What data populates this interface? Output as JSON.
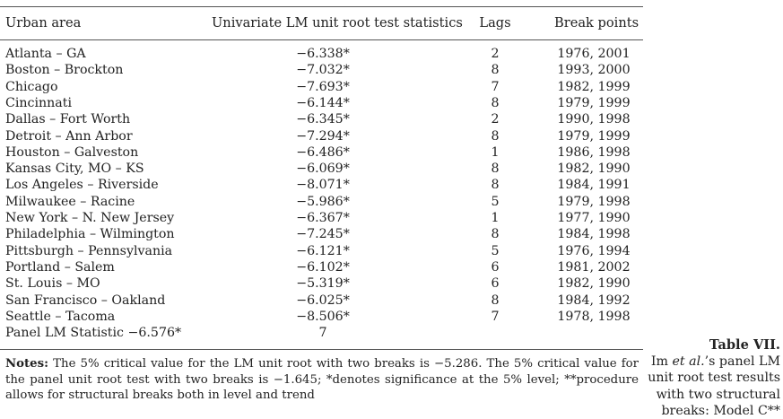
{
  "table": {
    "headers": {
      "urban_area": "Urban area",
      "statistic": "Univariate LM unit root test statistics",
      "lags": "Lags",
      "break_points": "Break points"
    },
    "rows": [
      {
        "area": "Atlanta – GA",
        "stat": "−6.338*",
        "lags": "2",
        "breaks": "1976, 2001"
      },
      {
        "area": "Boston – Brockton",
        "stat": "−7.032*",
        "lags": "8",
        "breaks": "1993, 2000"
      },
      {
        "area": "Chicago",
        "stat": "−7.693*",
        "lags": "7",
        "breaks": "1982, 1999"
      },
      {
        "area": "Cincinnati",
        "stat": "−6.144*",
        "lags": "8",
        "breaks": "1979, 1999"
      },
      {
        "area": "Dallas – Fort Worth",
        "stat": "−6.345*",
        "lags": "2",
        "breaks": "1990, 1998"
      },
      {
        "area": "Detroit – Ann Arbor",
        "stat": "−7.294*",
        "lags": "8",
        "breaks": "1979, 1999"
      },
      {
        "area": "Houston – Galveston",
        "stat": "−6.486*",
        "lags": "1",
        "breaks": "1986, 1998"
      },
      {
        "area": "Kansas City, MO – KS",
        "stat": "−6.069*",
        "lags": "8",
        "breaks": "1982, 1990"
      },
      {
        "area": "Los Angeles – Riverside",
        "stat": "−8.071*",
        "lags": "8",
        "breaks": "1984, 1991"
      },
      {
        "area": "Milwaukee – Racine",
        "stat": "−5.986*",
        "lags": "5",
        "breaks": "1979, 1998"
      },
      {
        "area": "New York – N. New Jersey",
        "stat": "−6.367*",
        "lags": "1",
        "breaks": "1977, 1990"
      },
      {
        "area": "Philadelphia – Wilmington",
        "stat": "−7.245*",
        "lags": "8",
        "breaks": "1984, 1998"
      },
      {
        "area": "Pittsburgh – Pennsylvania",
        "stat": "−6.121*",
        "lags": "5",
        "breaks": "1976, 1994"
      },
      {
        "area": "Portland – Salem",
        "stat": "−6.102*",
        "lags": "6",
        "breaks": "1981, 2002"
      },
      {
        "area": "St. Louis – MO",
        "stat": "−5.319*",
        "lags": "6",
        "breaks": "1982, 1990"
      },
      {
        "area": "San Francisco – Oakland",
        "stat": "−6.025*",
        "lags": "8",
        "breaks": "1984, 1992"
      },
      {
        "area": "Seattle – Tacoma",
        "stat": "−8.506*",
        "lags": "7",
        "breaks": "1978, 1998"
      }
    ],
    "panel_row": {
      "area": "Panel LM Statistic −6.576*",
      "stat": "7",
      "lags": "",
      "breaks": ""
    }
  },
  "notes": {
    "label": "Notes:",
    "text": "The 5% critical value for the LM unit root with two breaks is −5.286. The 5% critical value for the panel unit root test with two breaks is −1.645; *denotes significance at the 5% level; **procedure allows for structural breaks both in level and trend"
  },
  "caption": {
    "title": "Table VII.",
    "line_prefix": "Im",
    "line_italic": "et al.",
    "line_suffix": "’s panel LM unit root test results with two structural breaks: Model C**"
  }
}
